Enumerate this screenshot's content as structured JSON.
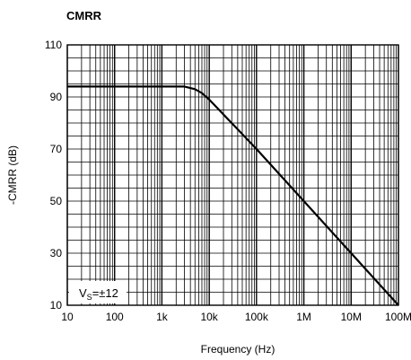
{
  "chart_data": {
    "type": "line",
    "title": "CMRR",
    "xlabel": "Frequency (Hz)",
    "ylabel": "-CMRR (dB)",
    "x_scale": "log",
    "xlim": [
      10,
      100000000
    ],
    "ylim": [
      10,
      110
    ],
    "grid": true,
    "x_ticks": [
      {
        "value": 10,
        "label": "10"
      },
      {
        "value": 100,
        "label": "100"
      },
      {
        "value": 1000,
        "label": "1k"
      },
      {
        "value": 10000,
        "label": "10k"
      },
      {
        "value": 100000,
        "label": "100k"
      },
      {
        "value": 1000000,
        "label": "1M"
      },
      {
        "value": 10000000,
        "label": "10M"
      },
      {
        "value": 100000000,
        "label": "100M"
      }
    ],
    "y_ticks": [
      {
        "value": 10,
        "label": "10"
      },
      {
        "value": 30,
        "label": "30"
      },
      {
        "value": 50,
        "label": "50"
      },
      {
        "value": 70,
        "label": "70"
      },
      {
        "value": 90,
        "label": "90"
      },
      {
        "value": 110,
        "label": "110"
      }
    ],
    "series": [
      {
        "x": [
          10,
          100,
          1000,
          3000,
          5000,
          7000,
          10000,
          100000,
          1000000,
          10000000,
          100000000
        ],
        "y": [
          94,
          94,
          94,
          94,
          93,
          91.5,
          89,
          70,
          50,
          30,
          10
        ],
        "color": "#000000"
      }
    ],
    "annotation": {
      "main": "V",
      "sub": "S",
      "rest": "=±12"
    }
  }
}
